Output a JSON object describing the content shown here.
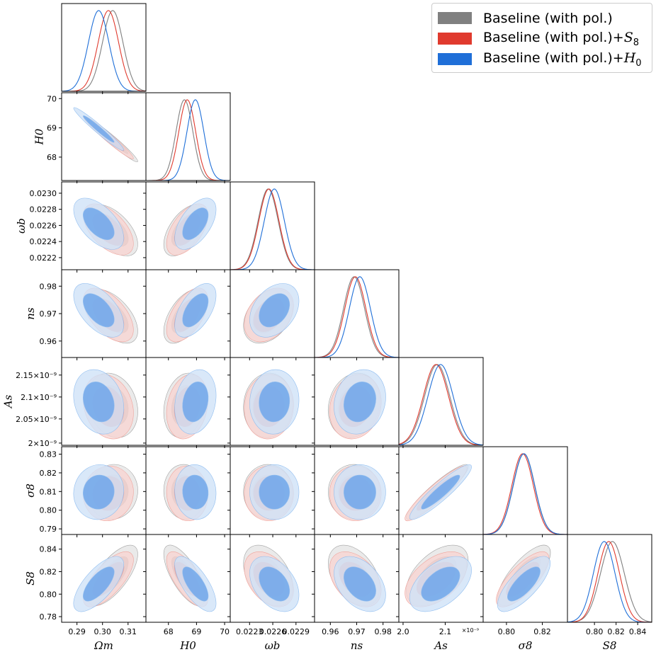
{
  "chart_data": {
    "type": "corner_triangle_plot",
    "description": "posterior contours (68% and 95%) with 1D marginals",
    "parameters": [
      {
        "id": "Omega_m",
        "label": "Ωm",
        "range": [
          0.284,
          0.317
        ],
        "ticks": [
          0.29,
          0.3,
          0.31
        ],
        "tick_labels": [
          "0.29",
          "0.30",
          "0.31"
        ]
      },
      {
        "id": "H0",
        "label": "H0",
        "range": [
          67.2,
          70.2
        ],
        "ticks": [
          68,
          69,
          70
        ],
        "tick_labels": [
          "68",
          "69",
          "70"
        ]
      },
      {
        "id": "omega_b",
        "label": "ωb",
        "range": [
          0.02205,
          0.02314
        ],
        "ticks": [
          0.0222,
          0.0224,
          0.0226,
          0.0228,
          0.023
        ],
        "tick_labels": [
          "0.0222",
          "0.0224",
          "0.0226",
          "0.0228",
          "0.0230"
        ],
        "x_ticks": [
          0.0223,
          0.0226,
          0.0229
        ],
        "x_tick_labels": [
          "0.0223",
          "0.0226",
          "0.0229"
        ]
      },
      {
        "id": "n_s",
        "label": "ns",
        "range": [
          0.954,
          0.986
        ],
        "ticks": [
          0.96,
          0.97,
          0.98
        ],
        "tick_labels": [
          "0.96",
          "0.97",
          "0.98"
        ]
      },
      {
        "id": "A_s",
        "label": "As",
        "range": [
          1.99,
          2.19
        ],
        "ticks": [
          1.995,
          2.05,
          2.1,
          2.15
        ],
        "tick_labels": [
          "2×10⁻⁹",
          "2.05×10⁻⁹",
          "2.1×10⁻⁹",
          "2.15×10⁻⁹"
        ],
        "x_ticks": [
          2.0,
          2.1
        ],
        "x_tick_labels": [
          "2.0",
          "2.1"
        ],
        "offset_label": "×10⁻⁹"
      },
      {
        "id": "sigma_8",
        "label": "σ8",
        "range": [
          0.787,
          0.834
        ],
        "ticks": [
          0.79,
          0.8,
          0.81,
          0.82,
          0.83
        ],
        "tick_labels": [
          "0.79",
          "0.80",
          "0.81",
          "0.82",
          "0.83"
        ],
        "x_ticks": [
          0.8,
          0.82
        ],
        "x_tick_labels": [
          "0.80",
          "0.82"
        ]
      },
      {
        "id": "S_8",
        "label": "S8",
        "range": [
          0.775,
          0.853
        ],
        "ticks": [
          0.78,
          0.8,
          0.82,
          0.84
        ],
        "tick_labels": [
          "0.78",
          "0.80",
          "0.82",
          "0.84"
        ],
        "x_ticks": [
          0.8,
          0.82,
          0.84
        ],
        "x_tick_labels": [
          "0.80",
          "0.82",
          "0.84"
        ]
      }
    ],
    "series": [
      {
        "name": "Baseline (with pol.)",
        "color": "#808080",
        "means": [
          0.304,
          68.57,
          0.02254,
          0.969,
          2.081,
          0.8098,
          0.8166
        ],
        "sigmas": [
          0.004,
          0.3,
          0.00013,
          0.004,
          0.03,
          0.006,
          0.011
        ]
      },
      {
        "name": "Baseline (with pol.)+S8",
        "color": "#e03a2e",
        "means": [
          0.3023,
          68.67,
          0.02255,
          0.9695,
          2.078,
          0.809,
          0.8132
        ],
        "sigmas": [
          0.004,
          0.3,
          0.00013,
          0.004,
          0.03,
          0.006,
          0.01
        ]
      },
      {
        "name": "Baseline (with pol.)+H0",
        "color": "#1f6fd8",
        "means": [
          0.2985,
          68.96,
          0.02262,
          0.9712,
          2.089,
          0.8097,
          0.809
        ],
        "sigmas": [
          0.004,
          0.3,
          0.00013,
          0.004,
          0.03,
          0.006,
          0.01
        ]
      }
    ],
    "correlations": [
      [
        1.0,
        -0.97,
        -0.55,
        -0.55,
        -0.2,
        0.05,
        0.7
      ],
      [
        -0.97,
        1.0,
        0.55,
        0.55,
        0.2,
        -0.05,
        -0.7
      ],
      [
        -0.55,
        0.55,
        1.0,
        0.35,
        0.05,
        0.0,
        -0.4
      ],
      [
        -0.55,
        0.55,
        0.35,
        1.0,
        0.15,
        0.0,
        -0.4
      ],
      [
        -0.2,
        0.2,
        0.05,
        0.15,
        1.0,
        0.92,
        0.5
      ],
      [
        0.05,
        -0.05,
        0.0,
        0.0,
        0.92,
        1.0,
        0.75
      ],
      [
        0.7,
        -0.7,
        -0.4,
        -0.4,
        0.5,
        0.75,
        1.0
      ]
    ]
  },
  "legend": {
    "entries": [
      {
        "text": "Baseline (with pol.)",
        "suffix": "",
        "sub": "",
        "swatch": "#808080"
      },
      {
        "text": "Baseline (with pol.)+",
        "suffix": "S",
        "sub": "8",
        "swatch": "#e03a2e"
      },
      {
        "text": "Baseline (with pol.)+",
        "suffix": "H",
        "sub": "0",
        "swatch": "#1f6fd8"
      }
    ]
  }
}
